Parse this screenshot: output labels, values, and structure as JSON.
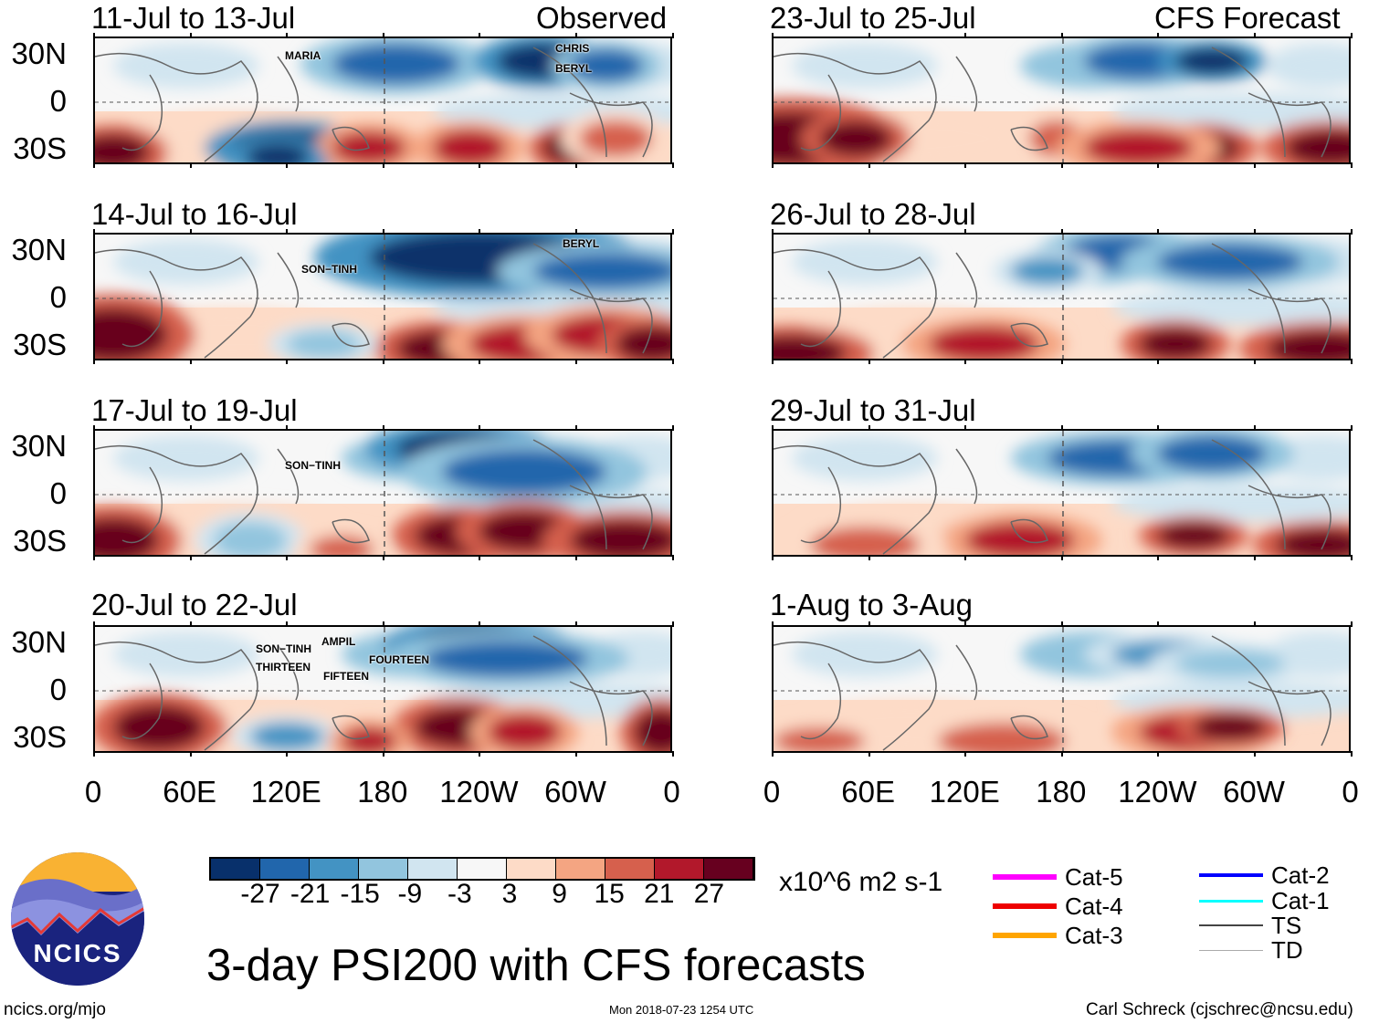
{
  "header": {
    "left_label": "Observed",
    "right_label": "CFS Forecast"
  },
  "panels": [
    {
      "title": "11-Jul to 13-Jul",
      "storms": [
        "MARIA",
        "CHRIS",
        "BERYL"
      ]
    },
    {
      "title": "14-Jul to 16-Jul",
      "storms": [
        "SON−TINH",
        "BERYL"
      ]
    },
    {
      "title": "17-Jul to 19-Jul",
      "storms": [
        "SON−TINH"
      ]
    },
    {
      "title": "20-Jul to 22-Jul",
      "storms": [
        "SON−TINH",
        "AMPIL",
        "THIRTEEN",
        "FOURTEEN",
        "FIFTEEN"
      ]
    },
    {
      "title": "23-Jul to 25-Jul",
      "storms": []
    },
    {
      "title": "26-Jul to 28-Jul",
      "storms": []
    },
    {
      "title": "29-Jul to 31-Jul",
      "storms": []
    },
    {
      "title": "1-Aug to 3-Aug",
      "storms": []
    }
  ],
  "lat_labels": [
    "30N",
    "0",
    "30S"
  ],
  "lon_labels": [
    "0",
    "60E",
    "120E",
    "180",
    "120W",
    "60W",
    "0"
  ],
  "colorbar": {
    "colors": [
      "#08306b",
      "#2166ac",
      "#4393c3",
      "#92c5de",
      "#d1e5f0",
      "#f7f7f7",
      "#fddbc7",
      "#f4a582",
      "#d6604d",
      "#b2182b",
      "#67001f"
    ],
    "labels": [
      "-27",
      "-21",
      "-15",
      "-9",
      "-3",
      "3",
      "9",
      "15",
      "21",
      "27"
    ],
    "units": "x10^6 m2 s-1"
  },
  "legend": [
    {
      "label": "Cat-5",
      "color": "#ff00ff"
    },
    {
      "label": "Cat-4",
      "color": "#ee0000"
    },
    {
      "label": "Cat-3",
      "color": "#ffa500"
    },
    {
      "label": "Cat-2",
      "color": "#0000ff"
    },
    {
      "label": "Cat-1",
      "color": "#00ffff"
    },
    {
      "label": "TS",
      "color": "#444444"
    },
    {
      "label": "TD",
      "color": "#aaaaaa"
    }
  ],
  "logo_text": "NCICS",
  "main_title": "3-day PSI200 with CFS forecasts",
  "footer": {
    "left": "ncics.org/mjo",
    "center": "Mon 2018-07-23 1254 UTC",
    "right": "Carl Schreck (cjschrec@ncsu.edu)"
  }
}
